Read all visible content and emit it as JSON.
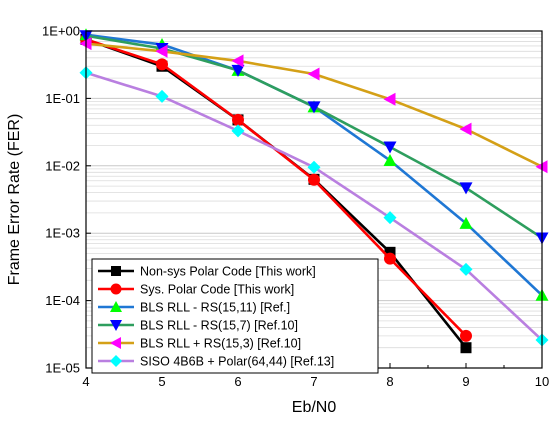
{
  "chart_data": {
    "type": "line",
    "title": "",
    "xlabel": "Eb/N0",
    "ylabel": "Frame Error Rate (FER)",
    "xlim": [
      4,
      10
    ],
    "ylim": [
      1e-05,
      1
    ],
    "y_scale": "log",
    "x_ticks": [
      "4",
      "5",
      "6",
      "7",
      "8",
      "9",
      "10"
    ],
    "y_ticks": [
      "1E-05",
      "1E-04",
      "1E-03",
      "1E-02",
      "1E-01",
      "1E+00"
    ],
    "grid": true,
    "legend_position": "bottom-left",
    "series": [
      {
        "name": "Non-sys Polar Code [This work]",
        "color": "#000000",
        "marker": "square",
        "x": [
          4,
          5,
          6,
          7,
          8,
          9
        ],
        "y": [
          0.75,
          0.3,
          0.048,
          0.0063,
          0.00052,
          2e-05
        ]
      },
      {
        "name": "Sys. Polar Code [This work]",
        "color": "#ff0000",
        "marker": "circle",
        "x": [
          4,
          5,
          6,
          7,
          8,
          9
        ],
        "y": [
          0.75,
          0.32,
          0.048,
          0.0062,
          0.00042,
          3e-05
        ]
      },
      {
        "name": "BLS RLL - RS(15,11) [Ref.]",
        "color": "#00ff00",
        "line_color": "#1f77d4",
        "marker": "triangle-up",
        "x": [
          4,
          5,
          6,
          7,
          8,
          9,
          10
        ],
        "y": [
          0.88,
          0.63,
          0.26,
          0.075,
          0.012,
          0.0014,
          0.00012
        ]
      },
      {
        "name": "BLS RLL - RS(15,7) [Ref.10]",
        "color": "#0000ff",
        "line_color": "#2e9e5e",
        "marker": "triangle-down",
        "x": [
          4,
          5,
          6,
          7,
          8,
          9,
          10
        ],
        "y": [
          0.85,
          0.55,
          0.26,
          0.075,
          0.019,
          0.0047,
          0.00085
        ]
      },
      {
        "name": "BLS RLL + RS(15,3) [Ref.10]",
        "color": "#ff00ff",
        "line_color": "#d4a017",
        "marker": "triangle-left",
        "x": [
          4,
          5,
          6,
          7,
          8,
          9,
          10
        ],
        "y": [
          0.65,
          0.5,
          0.36,
          0.23,
          0.097,
          0.035,
          0.0097
        ]
      },
      {
        "name": "SISO 4B6B + Polar(64,44) [Ref.13]",
        "color": "#00ffff",
        "line_color": "#b97fe0",
        "marker": "diamond",
        "x": [
          4,
          5,
          6,
          7,
          8,
          9,
          10
        ],
        "y": [
          0.24,
          0.107,
          0.033,
          0.0095,
          0.0017,
          0.00029,
          2.6e-05
        ]
      }
    ]
  }
}
